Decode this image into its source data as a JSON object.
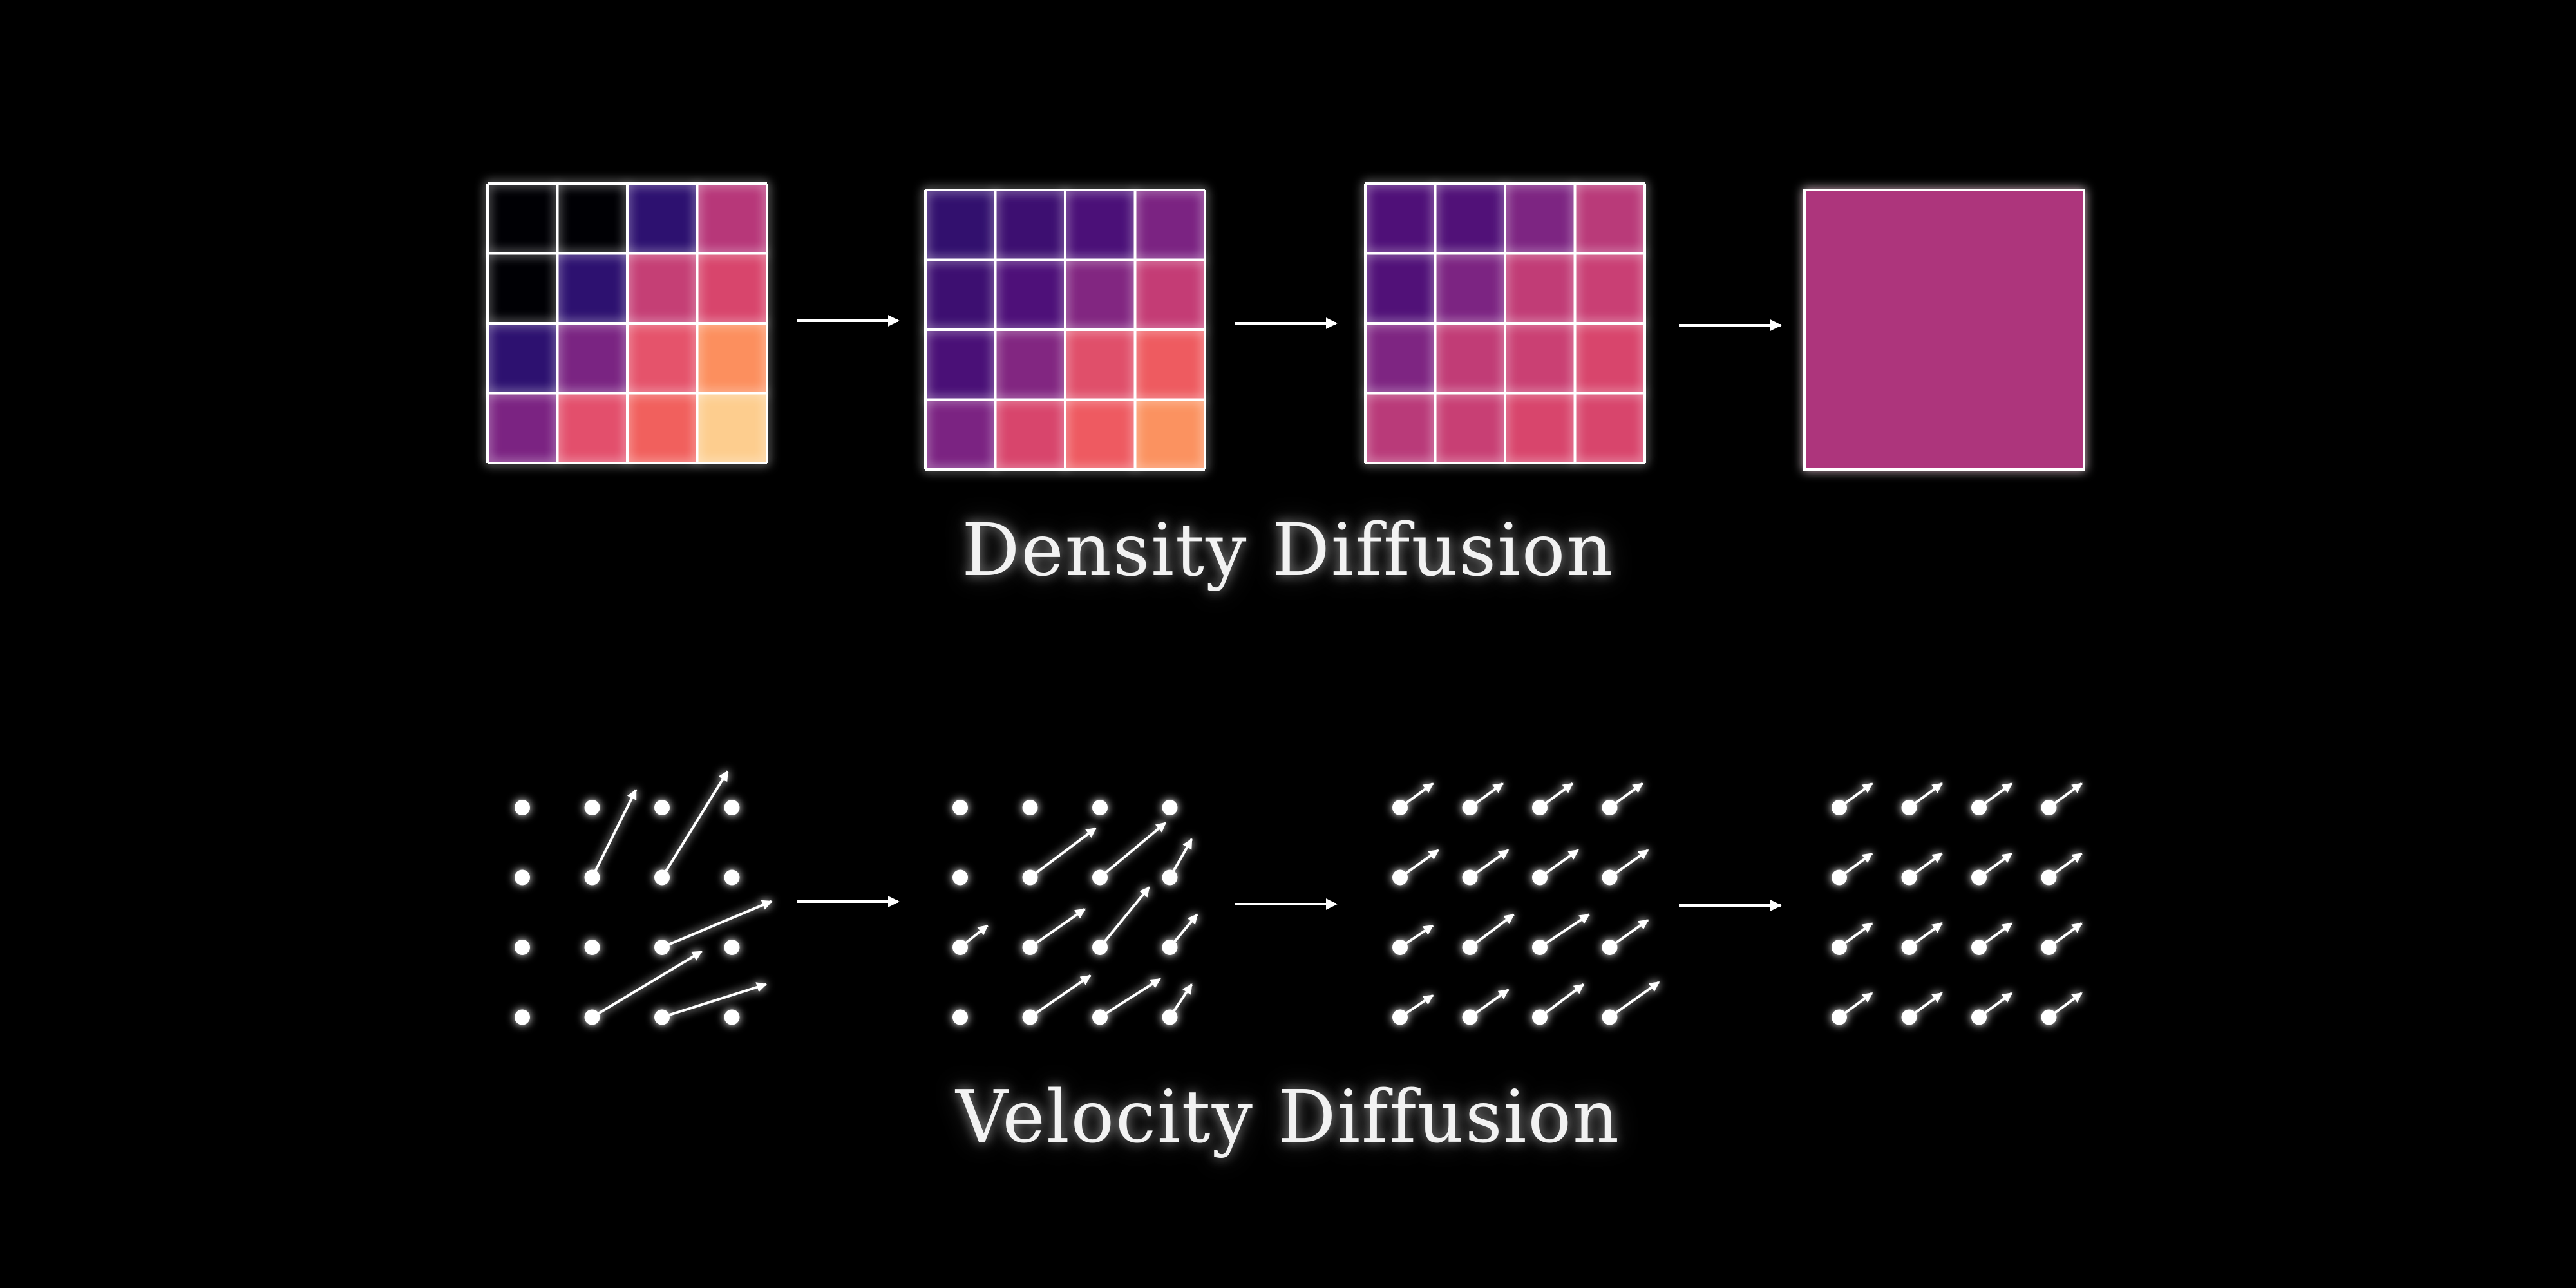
{
  "titles": {
    "density": "Density Diffusion",
    "velocity": "Velocity Diffusion"
  },
  "colors": {
    "background": "#000000",
    "line": "#ffffff"
  },
  "density_steps": [
    {
      "uniform": false,
      "cells": [
        [
          "#000004",
          "#000004",
          "#2d1170",
          "#b73779"
        ],
        [
          "#000004",
          "#2d1170",
          "#c53f75",
          "#d8456c"
        ],
        [
          "#2d1170",
          "#7a2482",
          "#e5536b",
          "#fc8f5e"
        ],
        [
          "#7b2382",
          "#e34f6c",
          "#f1605d",
          "#fdcd8e"
        ]
      ]
    },
    {
      "uniform": false,
      "cells": [
        [
          "#32106e",
          "#3d0f71",
          "#4b1078",
          "#7b2382"
        ],
        [
          "#3d0f71",
          "#4e1079",
          "#822681",
          "#c43c75"
        ],
        [
          "#4a1077",
          "#822681",
          "#e04f6a",
          "#ee5b60"
        ],
        [
          "#7b2382",
          "#d8456c",
          "#ee5a61",
          "#fb9260"
        ]
      ]
    },
    {
      "uniform": false,
      "cells": [
        [
          "#4f1078",
          "#511178",
          "#7d2582",
          "#b93a79"
        ],
        [
          "#511178",
          "#7c2482",
          "#c13c76",
          "#c93f74"
        ],
        [
          "#7e2582",
          "#c13c76",
          "#ca4073",
          "#d8456c"
        ],
        [
          "#b93a79",
          "#c83f74",
          "#d8456c",
          "#d8456c"
        ]
      ]
    },
    {
      "uniform": true,
      "fill": "#ad347c"
    }
  ],
  "velocity_steps": [
    {
      "vectors": [
        [
          [
            0,
            0
          ],
          [
            0,
            0
          ],
          [
            0,
            0
          ],
          [
            0,
            0
          ]
        ],
        [
          [
            0,
            0
          ],
          [
            0.4,
            0.8
          ],
          [
            0.6,
            0.97
          ],
          [
            0,
            0
          ]
        ],
        [
          [
            0,
            0
          ],
          [
            0,
            0
          ],
          [
            1.0,
            0.42
          ],
          [
            0,
            0
          ]
        ],
        [
          [
            0,
            0
          ],
          [
            1.0,
            0.6
          ],
          [
            0.95,
            0.3
          ],
          [
            0,
            0
          ]
        ]
      ]
    },
    {
      "vectors": [
        [
          [
            0,
            0
          ],
          [
            0,
            0
          ],
          [
            0,
            0
          ],
          [
            0,
            0
          ]
        ],
        [
          [
            0,
            0
          ],
          [
            0.6,
            0.45
          ],
          [
            0.6,
            0.5
          ],
          [
            0.2,
            0.35
          ]
        ],
        [
          [
            0.25,
            0.2
          ],
          [
            0.5,
            0.35
          ],
          [
            0.45,
            0.55
          ],
          [
            0.25,
            0.3
          ]
        ],
        [
          [
            0,
            0
          ],
          [
            0.55,
            0.38
          ],
          [
            0.55,
            0.35
          ],
          [
            0.2,
            0.3
          ]
        ]
      ]
    },
    {
      "vectors": [
        [
          [
            0.3,
            0.22
          ],
          [
            0.3,
            0.22
          ],
          [
            0.3,
            0.22
          ],
          [
            0.3,
            0.22
          ]
        ],
        [
          [
            0.35,
            0.25
          ],
          [
            0.35,
            0.25
          ],
          [
            0.35,
            0.25
          ],
          [
            0.35,
            0.25
          ]
        ],
        [
          [
            0.3,
            0.2
          ],
          [
            0.4,
            0.3
          ],
          [
            0.45,
            0.3
          ],
          [
            0.35,
            0.25
          ]
        ],
        [
          [
            0.3,
            0.2
          ],
          [
            0.35,
            0.25
          ],
          [
            0.4,
            0.3
          ],
          [
            0.45,
            0.32
          ]
        ]
      ]
    },
    {
      "vectors": [
        [
          [
            0.3,
            0.22
          ],
          [
            0.3,
            0.22
          ],
          [
            0.3,
            0.22
          ],
          [
            0.3,
            0.22
          ]
        ],
        [
          [
            0.3,
            0.22
          ],
          [
            0.3,
            0.22
          ],
          [
            0.3,
            0.22
          ],
          [
            0.3,
            0.22
          ]
        ],
        [
          [
            0.3,
            0.22
          ],
          [
            0.3,
            0.22
          ],
          [
            0.3,
            0.22
          ],
          [
            0.3,
            0.22
          ]
        ],
        [
          [
            0.3,
            0.22
          ],
          [
            0.3,
            0.22
          ],
          [
            0.3,
            0.22
          ],
          [
            0.3,
            0.22
          ]
        ]
      ]
    }
  ]
}
